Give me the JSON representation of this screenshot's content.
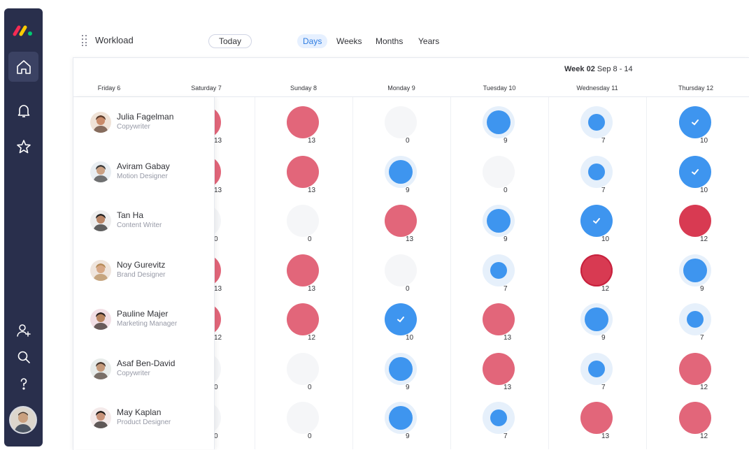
{
  "app": {
    "colors": {
      "sidebar": "#292f4c",
      "accent": "#2f7de1",
      "overload": "#e2667a",
      "overload_dark": "#d83a52",
      "ok": "#3e95ef",
      "empty": "#f5f6f8"
    }
  },
  "sidebar": {
    "items": [
      {
        "name": "home-icon",
        "active": true
      },
      {
        "name": "bell-icon",
        "active": false
      },
      {
        "name": "star-icon",
        "active": false
      },
      {
        "name": "invite-user-icon",
        "active": false
      },
      {
        "name": "search-icon",
        "active": false
      },
      {
        "name": "help-icon",
        "active": false
      }
    ]
  },
  "toolbar": {
    "title": "Workload",
    "today_label": "Today",
    "scales": [
      "Days",
      "Weeks",
      "Months",
      "Years"
    ],
    "active_scale": "Days"
  },
  "timeline": {
    "week_prefix": "Week 02",
    "week_range": "Sep 8 - 14",
    "days": [
      "Friday 6",
      "Saturday 7",
      "Sunday 8",
      "Monday 9",
      "Tuesday 10",
      "Wednesday 11",
      "Thursday 12"
    ]
  },
  "people": [
    {
      "name": "Julia Fagelman",
      "role": "Copywriter",
      "workload": [
        null,
        13,
        13,
        0,
        9,
        7,
        10
      ],
      "status": [
        null,
        "over",
        "over",
        "empty",
        "ok",
        "ok-small",
        "done"
      ]
    },
    {
      "name": "Aviram Gabay",
      "role": "Motion Designer",
      "workload": [
        null,
        13,
        13,
        9,
        0,
        7,
        10
      ],
      "status": [
        null,
        "over",
        "over",
        "ok",
        "empty",
        "ok-small",
        "done"
      ]
    },
    {
      "name": "Tan Ha",
      "role": "Content Writer",
      "workload": [
        null,
        0,
        0,
        13,
        9,
        10,
        12
      ],
      "status": [
        null,
        "empty",
        "empty",
        "over",
        "ok",
        "done",
        "over-dark"
      ]
    },
    {
      "name": "Noy Gurevitz",
      "role": "Brand Designer",
      "workload": [
        null,
        13,
        13,
        0,
        7,
        12,
        9
      ],
      "status": [
        null,
        "over",
        "over",
        "empty",
        "ok-small",
        "over-dark",
        "ok"
      ]
    },
    {
      "name": "Pauline Majer",
      "role": "Marketing Manager",
      "workload": [
        null,
        12,
        12,
        10,
        13,
        9,
        7
      ],
      "status": [
        null,
        "over",
        "over",
        "done",
        "over",
        "ok",
        "ok-small"
      ]
    },
    {
      "name": "Asaf Ben-David",
      "role": "Copywriter",
      "workload": [
        null,
        0,
        0,
        9,
        13,
        7,
        12
      ],
      "status": [
        null,
        "empty",
        "empty",
        "ok",
        "over",
        "ok-small",
        "over"
      ]
    },
    {
      "name": "May Kaplan",
      "role": "Product Designer",
      "workload": [
        null,
        0,
        0,
        9,
        7,
        13,
        12
      ],
      "status": [
        null,
        "empty",
        "empty",
        "ok",
        "ok-small",
        "over",
        "over"
      ]
    }
  ]
}
